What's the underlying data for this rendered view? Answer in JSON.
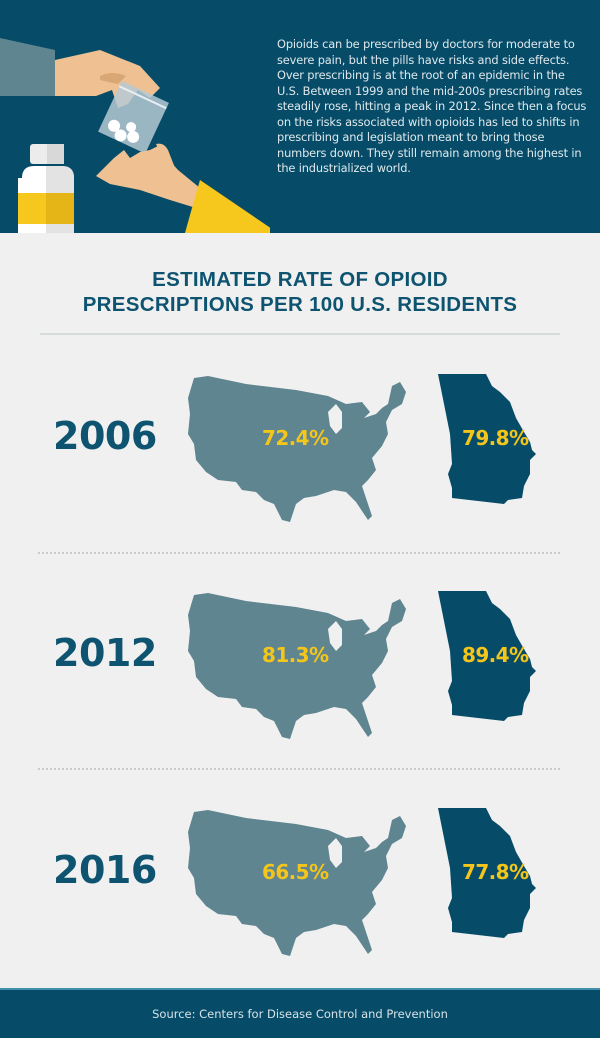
{
  "intro": {
    "text": "Opioids can be prescribed by doctors for moderate to severe pain, but the pills have risks and side effects. Over prescribing is at the root of an epidemic in the U.S. Between 1999 and the mid-200s prescribing rates steadily rose, hitting a peak in 2012. Since then a focus on the risks associated with opioids has led to shifts in prescribing and legislation meant to bring those numbers down. They still remain among the highest in the industrialized world."
  },
  "colors": {
    "navy": "#064c68",
    "us_map": "#5f8590",
    "georgia_map": "#064c68",
    "value_yellow": "#f4c51a",
    "heading_blue": "#0e5470"
  },
  "chart_data": {
    "type": "table",
    "title": "ESTIMATED RATE OF OPIOID PRESCRIPTIONS PER 100 U.S. RESIDENTS",
    "title_lines": [
      "ESTIMATED RATE OF OPIOID",
      "PRESCRIPTIONS PER 100 U.S. RESIDENTS"
    ],
    "categories": [
      "2006",
      "2012",
      "2016"
    ],
    "series": [
      {
        "name": "United States",
        "icon": "us-map-icon",
        "values": [
          72.4,
          81.3,
          66.5
        ],
        "labels": [
          "72.4%",
          "81.3%",
          "66.5%"
        ]
      },
      {
        "name": "Georgia",
        "icon": "georgia-map-icon",
        "values": [
          79.8,
          89.4,
          77.8
        ],
        "labels": [
          "79.8%",
          "89.4%",
          "77.8%"
        ]
      }
    ]
  },
  "footer": {
    "source": "Source: Centers for Disease Control and Prevention"
  }
}
